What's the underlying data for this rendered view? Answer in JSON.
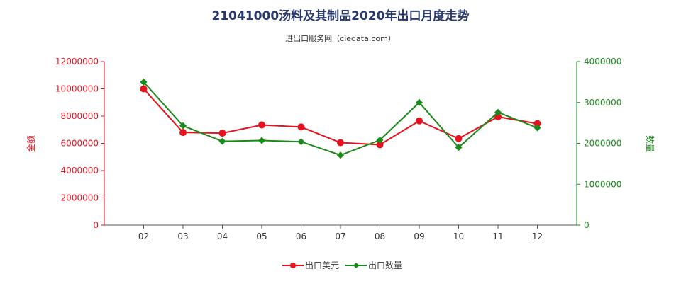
{
  "chart_data": {
    "type": "line",
    "title": "21041000汤料及其制品2020年出口月度走势",
    "subtitle": "进出口服务网（ciedata.com）",
    "categories": [
      "02",
      "03",
      "04",
      "05",
      "06",
      "07",
      "08",
      "09",
      "10",
      "11",
      "12"
    ],
    "y_left": {
      "label": "金额",
      "ylim": [
        0,
        12000000
      ],
      "ticks": [
        "0",
        "2000000",
        "4000000",
        "6000000",
        "8000000",
        "10000000",
        "12000000"
      ],
      "color": "#e8121f"
    },
    "y_right": {
      "label": "数量",
      "ylim": [
        0,
        4000000
      ],
      "ticks": [
        "0",
        "1000000",
        "2000000",
        "3000000",
        "4000000"
      ],
      "color": "#1a8a1a"
    },
    "series": [
      {
        "name": "出口美元",
        "axis": "left",
        "color": "#e8121f",
        "values": [
          10000000,
          6800000,
          6750000,
          7350000,
          7200000,
          6050000,
          5900000,
          7650000,
          6350000,
          7950000,
          7450000
        ]
      },
      {
        "name": "出口数量",
        "axis": "right",
        "color": "#1a8a1a",
        "values": [
          3500000,
          2430000,
          2050000,
          2070000,
          2040000,
          1710000,
          2080000,
          3000000,
          1900000,
          2760000,
          2380000
        ]
      }
    ],
    "grid": false,
    "legend_position": "bottom-center"
  }
}
